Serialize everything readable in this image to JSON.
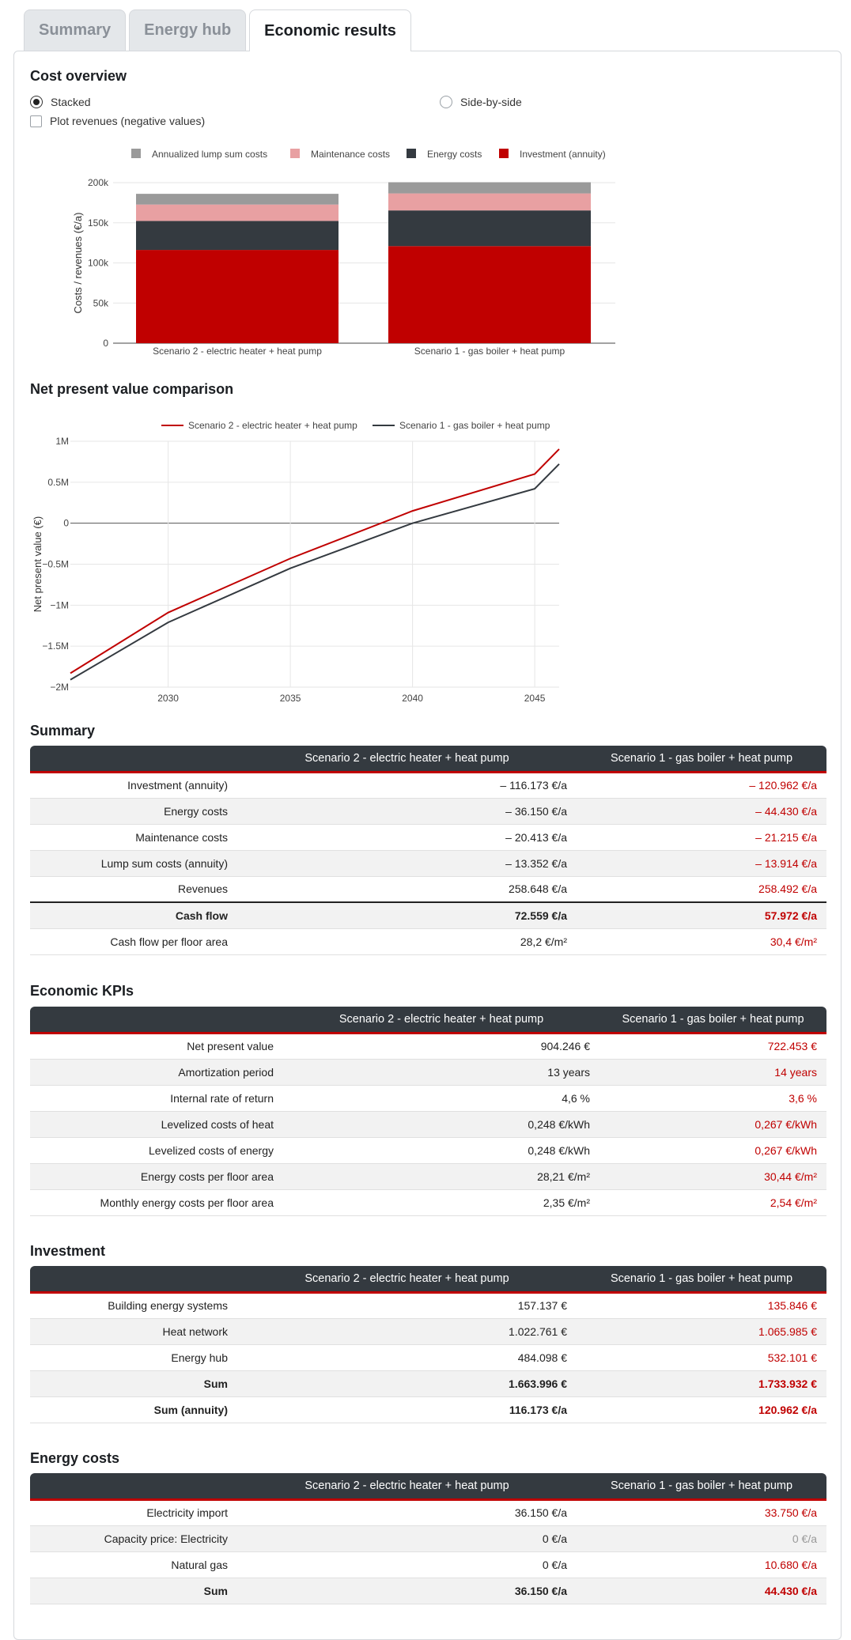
{
  "tabs": [
    "Summary",
    "Energy hub",
    "Economic results"
  ],
  "cost_overview": {
    "title": "Cost overview",
    "options": {
      "stacked": "Stacked",
      "side_by_side": "Side-by-side",
      "plot_revenues": "Plot revenues (negative values)"
    },
    "selected": "stacked"
  },
  "npv_title": "Net present value comparison",
  "colors": {
    "red": "#c00000",
    "dark": "#343a40",
    "pink": "#e8a0a2",
    "grey": "#9a9a9a"
  },
  "chart_data": [
    {
      "type": "bar",
      "stacked": true,
      "categories": [
        "Scenario 2 - electric heater + heat pump",
        "Scenario 1 - gas boiler + heat pump"
      ],
      "series": [
        {
          "name": "Investment (annuity)",
          "color": "#c00000",
          "values": [
            116173,
            120962
          ]
        },
        {
          "name": "Energy costs",
          "color": "#343a40",
          "values": [
            36150,
            44430
          ]
        },
        {
          "name": "Maintenance costs",
          "color": "#e8a0a2",
          "values": [
            20413,
            21215
          ]
        },
        {
          "name": "Annualized lump sum costs",
          "color": "#9a9a9a",
          "values": [
            13352,
            13914
          ]
        }
      ],
      "legend_order": [
        "Annualized lump sum costs",
        "Maintenance costs",
        "Energy costs",
        "Investment (annuity)"
      ],
      "ylabel": "Costs / revenues (€/a)",
      "ylim": [
        0,
        200000
      ],
      "yticks": [
        0,
        50000,
        100000,
        150000,
        200000
      ],
      "ytick_labels": [
        "0",
        "50k",
        "100k",
        "150k",
        "200k"
      ],
      "grid": true,
      "legend": "top"
    },
    {
      "type": "line",
      "x": [
        2026,
        2030,
        2035,
        2040,
        2045,
        2046
      ],
      "series": [
        {
          "name": "Scenario 2 - electric heater + heat pump",
          "color": "#c00000",
          "values": [
            -1830000,
            -1090000,
            -430000,
            150000,
            600000,
            904246
          ]
        },
        {
          "name": "Scenario 1 - gas boiler + heat pump",
          "color": "#343a40",
          "values": [
            -1910000,
            -1210000,
            -550000,
            0,
            420000,
            722453
          ]
        }
      ],
      "ylabel": "Net present value (€)",
      "xlim": [
        2026,
        2046
      ],
      "ylim": [
        -2000000,
        1000000
      ],
      "xticks": [
        2030,
        2035,
        2040,
        2045
      ],
      "yticks": [
        -2000000,
        -1500000,
        -1000000,
        -500000,
        0,
        500000,
        1000000
      ],
      "ytick_labels": [
        "−2M",
        "−1.5M",
        "−1M",
        "−0.5M",
        "0",
        "0.5M",
        "1M"
      ],
      "grid": true,
      "legend": "top"
    }
  ],
  "tables": {
    "summary": {
      "title": "Summary",
      "headers": [
        "",
        "Scenario 2 - electric heater + heat pump",
        "Scenario 1 - gas boiler + heat pump"
      ],
      "rows": [
        [
          "Investment (annuity)",
          "– 116.173 €/a",
          "– 120.962 €/a"
        ],
        [
          "Energy costs",
          "– 36.150 €/a",
          "– 44.430 €/a"
        ],
        [
          "Maintenance costs",
          "– 20.413 €/a",
          "– 21.215 €/a"
        ],
        [
          "Lump sum costs (annuity)",
          "– 13.352 €/a",
          "– 13.914 €/a"
        ],
        [
          "Revenues",
          "258.648 €/a",
          "258.492 €/a"
        ],
        [
          "Cash flow",
          "72.559 €/a",
          "57.972 €/a"
        ],
        [
          "Cash flow per floor area",
          "28,2 €/m²",
          "30,4 €/m²"
        ]
      ]
    },
    "kpis": {
      "title": "Economic KPIs",
      "headers": [
        "",
        "Scenario 2 - electric heater + heat pump",
        "Scenario 1 - gas boiler + heat pump"
      ],
      "rows": [
        [
          "Net present value",
          "904.246 €",
          "722.453 €"
        ],
        [
          "Amortization period",
          "13 years",
          "14 years"
        ],
        [
          "Internal rate of return",
          "4,6 %",
          "3,6 %"
        ],
        [
          "Levelized costs of heat",
          "0,248 €/kWh",
          "0,267 €/kWh"
        ],
        [
          "Levelized costs of energy",
          "0,248 €/kWh",
          "0,267 €/kWh"
        ],
        [
          "Energy costs per floor area",
          "28,21 €/m²",
          "30,44 €/m²"
        ],
        [
          "Monthly energy costs per floor area",
          "2,35 €/m²",
          "2,54 €/m²"
        ]
      ]
    },
    "investment": {
      "title": "Investment",
      "headers": [
        "",
        "Scenario 2 - electric heater + heat pump",
        "Scenario 1 - gas boiler + heat pump"
      ],
      "rows": [
        [
          "Building energy systems",
          "157.137 €",
          "135.846 €"
        ],
        [
          "Heat network",
          "1.022.761 €",
          "1.065.985 €"
        ],
        [
          "Energy hub",
          "484.098 €",
          "532.101 €"
        ],
        [
          "Sum",
          "1.663.996 €",
          "1.733.932 €"
        ],
        [
          "Sum (annuity)",
          "116.173 €/a",
          "120.962 €/a"
        ]
      ]
    },
    "energy_costs": {
      "title": "Energy costs",
      "headers": [
        "",
        "Scenario 2 - electric heater + heat pump",
        "Scenario 1 - gas boiler + heat pump"
      ],
      "rows": [
        [
          "Electricity import",
          "36.150 €/a",
          "33.750 €/a"
        ],
        [
          "Capacity price: Electricity",
          "0 €/a",
          "0 €/a"
        ],
        [
          "Natural gas",
          "0 €/a",
          "10.680 €/a"
        ],
        [
          "Sum",
          "36.150 €/a",
          "44.430 €/a"
        ]
      ]
    }
  }
}
